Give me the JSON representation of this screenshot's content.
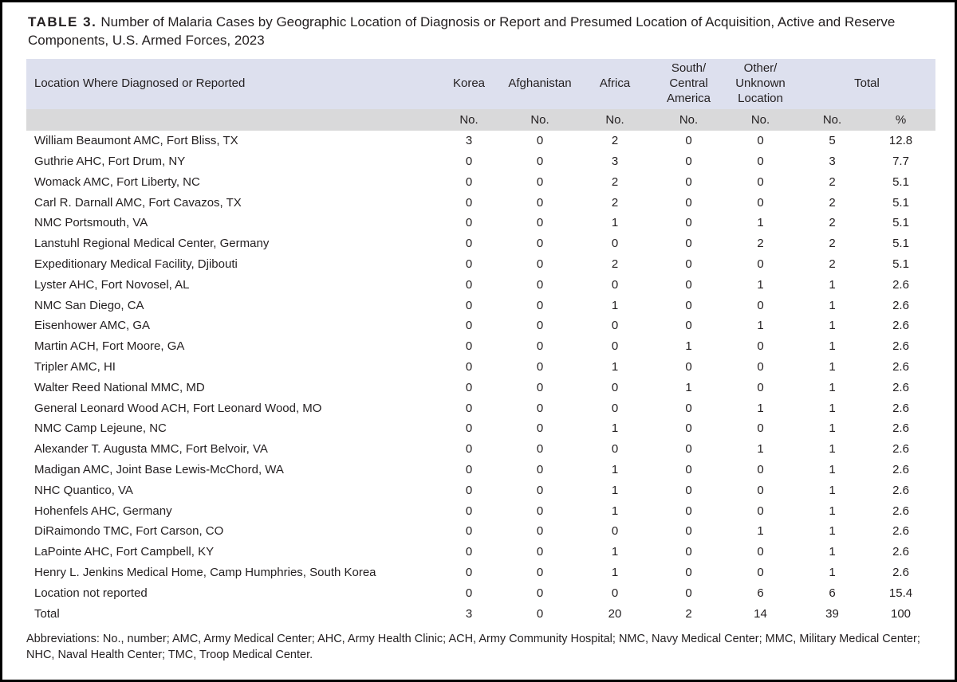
{
  "title": {
    "label": "TABLE 3.",
    "text": "Number of Malaria Cases by Geographic Location of Diagnosis or Report and Presumed Location of Acquisition, Active and Reserve Components, U.S. Armed Forces, 2023"
  },
  "colors": {
    "header_band": "#dde0ee",
    "unit_band": "#d9d9da",
    "text": "#231f20",
    "frame_border": "#000000"
  },
  "table": {
    "location_header": "Location Where Diagnosed or Reported",
    "columns": [
      "Korea",
      "Afghanistan",
      "Africa",
      "South/\nCentral\nAmerica",
      "Other/\nUnknown\nLocation",
      "Total"
    ],
    "unit_headers": [
      "No.",
      "No.",
      "No.",
      "No.",
      "No.",
      "No.",
      "%"
    ],
    "rows": [
      {
        "location": "William Beaumont AMC, Fort Bliss, TX",
        "values": [
          "3",
          "0",
          "2",
          "0",
          "0",
          "5",
          "12.8"
        ]
      },
      {
        "location": "Guthrie AHC, Fort Drum, NY",
        "values": [
          "0",
          "0",
          "3",
          "0",
          "0",
          "3",
          "7.7"
        ]
      },
      {
        "location": "Womack AMC, Fort Liberty, NC",
        "values": [
          "0",
          "0",
          "2",
          "0",
          "0",
          "2",
          "5.1"
        ]
      },
      {
        "location": "Carl R. Darnall AMC, Fort Cavazos, TX",
        "values": [
          "0",
          "0",
          "2",
          "0",
          "0",
          "2",
          "5.1"
        ]
      },
      {
        "location": "NMC Portsmouth, VA",
        "values": [
          "0",
          "0",
          "1",
          "0",
          "1",
          "2",
          "5.1"
        ]
      },
      {
        "location": "Lanstuhl Regional Medical Center, Germany",
        "values": [
          "0",
          "0",
          "0",
          "0",
          "2",
          "2",
          "5.1"
        ]
      },
      {
        "location": "Expeditionary Medical Facility, Djibouti",
        "values": [
          "0",
          "0",
          "2",
          "0",
          "0",
          "2",
          "5.1"
        ]
      },
      {
        "location": "Lyster AHC, Fort Novosel, AL",
        "values": [
          "0",
          "0",
          "0",
          "0",
          "1",
          "1",
          "2.6"
        ]
      },
      {
        "location": "NMC San Diego, CA",
        "values": [
          "0",
          "0",
          "1",
          "0",
          "0",
          "1",
          "2.6"
        ]
      },
      {
        "location": "Eisenhower AMC, GA",
        "values": [
          "0",
          "0",
          "0",
          "0",
          "1",
          "1",
          "2.6"
        ]
      },
      {
        "location": "Martin ACH, Fort Moore, GA",
        "values": [
          "0",
          "0",
          "0",
          "1",
          "0",
          "1",
          "2.6"
        ]
      },
      {
        "location": "Tripler AMC, HI",
        "values": [
          "0",
          "0",
          "1",
          "0",
          "0",
          "1",
          "2.6"
        ]
      },
      {
        "location": "Walter Reed National MMC, MD",
        "values": [
          "0",
          "0",
          "0",
          "1",
          "0",
          "1",
          "2.6"
        ]
      },
      {
        "location": "General Leonard Wood ACH, Fort Leonard Wood, MO",
        "values": [
          "0",
          "0",
          "0",
          "0",
          "1",
          "1",
          "2.6"
        ]
      },
      {
        "location": "NMC Camp Lejeune, NC",
        "values": [
          "0",
          "0",
          "1",
          "0",
          "0",
          "1",
          "2.6"
        ]
      },
      {
        "location": "Alexander T. Augusta MMC, Fort Belvoir, VA",
        "values": [
          "0",
          "0",
          "0",
          "0",
          "1",
          "1",
          "2.6"
        ]
      },
      {
        "location": "Madigan AMC, Joint Base Lewis-McChord, WA",
        "values": [
          "0",
          "0",
          "1",
          "0",
          "0",
          "1",
          "2.6"
        ]
      },
      {
        "location": "NHC Quantico, VA",
        "values": [
          "0",
          "0",
          "1",
          "0",
          "0",
          "1",
          "2.6"
        ]
      },
      {
        "location": "Hohenfels AHC, Germany",
        "values": [
          "0",
          "0",
          "1",
          "0",
          "0",
          "1",
          "2.6"
        ]
      },
      {
        "location": "DiRaimondo TMC, Fort Carson, CO",
        "values": [
          "0",
          "0",
          "0",
          "0",
          "1",
          "1",
          "2.6"
        ]
      },
      {
        "location": "LaPointe AHC, Fort Campbell, KY",
        "values": [
          "0",
          "0",
          "1",
          "0",
          "0",
          "1",
          "2.6"
        ]
      },
      {
        "location": "Henry L. Jenkins Medical Home, Camp Humphries, South Korea",
        "values": [
          "0",
          "0",
          "1",
          "0",
          "0",
          "1",
          "2.6"
        ]
      },
      {
        "location": "Location not reported",
        "values": [
          "0",
          "0",
          "0",
          "0",
          "6",
          "6",
          "15.4"
        ]
      },
      {
        "location": "Total",
        "values": [
          "3",
          "0",
          "20",
          "2",
          "14",
          "39",
          "100"
        ]
      }
    ]
  },
  "footnote": "Abbreviations: No., number; AMC, Army Medical Center; AHC, Army Health Clinic; ACH, Army Community Hospital; NMC, Navy Medical Center; MMC, Military Medical Center; NHC, Naval Health Center; TMC, Troop Medical Center."
}
